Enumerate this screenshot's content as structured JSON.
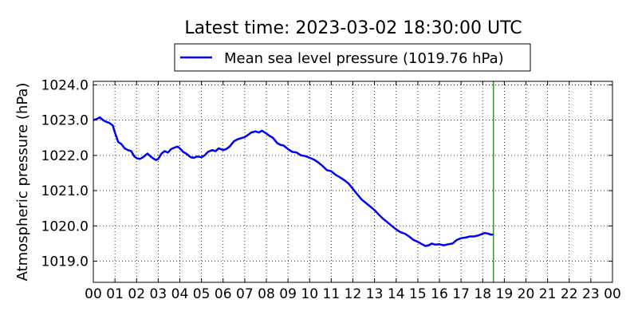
{
  "chart_data": {
    "type": "line",
    "title": "Latest time: 2023-03-02 18:30:00 UTC",
    "xlabel": "",
    "ylabel": "Atmospheric pressure (hPa)",
    "xlim": [
      0,
      24
    ],
    "ylim": [
      1018.4,
      1024.1
    ],
    "x_ticks": [
      "00",
      "01",
      "02",
      "03",
      "04",
      "05",
      "06",
      "07",
      "08",
      "09",
      "10",
      "11",
      "12",
      "13",
      "14",
      "15",
      "16",
      "17",
      "18",
      "19",
      "20",
      "21",
      "22",
      "23",
      "00"
    ],
    "y_ticks": [
      "1019.0",
      "1020.0",
      "1021.0",
      "1022.0",
      "1023.0",
      "1024.0"
    ],
    "grid": true,
    "legend_position": "top-center, above plot",
    "marker_line_x": 18.5,
    "colors": {
      "series": "#0000ff",
      "marker_line": "#008000",
      "grid": "#000000"
    },
    "series": [
      {
        "name": "Mean sea level pressure (1019.76 hPa)",
        "x": [
          0,
          0.15,
          0.3,
          0.45,
          0.6,
          0.75,
          0.9,
          1.0,
          1.15,
          1.3,
          1.45,
          1.6,
          1.75,
          1.9,
          2.0,
          2.15,
          2.3,
          2.5,
          2.65,
          2.8,
          2.9,
          3.0,
          3.15,
          3.3,
          3.45,
          3.6,
          3.75,
          3.9,
          4.0,
          4.15,
          4.3,
          4.5,
          4.65,
          4.8,
          5.0,
          5.15,
          5.3,
          5.5,
          5.65,
          5.8,
          6.0,
          6.15,
          6.3,
          6.5,
          6.65,
          6.8,
          7.0,
          7.15,
          7.3,
          7.5,
          7.65,
          7.8,
          8.0,
          8.15,
          8.3,
          8.5,
          8.65,
          8.8,
          9.0,
          9.2,
          9.4,
          9.6,
          9.8,
          10.0,
          10.2,
          10.4,
          10.6,
          10.8,
          11.0,
          11.2,
          11.4,
          11.6,
          11.8,
          12.0,
          12.2,
          12.4,
          12.6,
          12.8,
          13.0,
          13.2,
          13.4,
          13.6,
          13.8,
          14.0,
          14.2,
          14.4,
          14.6,
          14.8,
          15.0,
          15.2,
          15.35,
          15.5,
          15.65,
          15.8,
          16.0,
          16.2,
          16.4,
          16.6,
          16.8,
          17.0,
          17.2,
          17.4,
          17.6,
          17.8,
          18.0,
          18.1,
          18.25,
          18.4,
          18.5
        ],
        "values": [
          1023.0,
          1023.03,
          1023.08,
          1023.0,
          1022.95,
          1022.92,
          1022.85,
          1022.65,
          1022.38,
          1022.32,
          1022.2,
          1022.15,
          1022.12,
          1021.97,
          1021.92,
          1021.9,
          1021.95,
          1022.05,
          1021.97,
          1021.9,
          1021.87,
          1021.9,
          1022.05,
          1022.12,
          1022.08,
          1022.18,
          1022.22,
          1022.25,
          1022.2,
          1022.1,
          1022.05,
          1021.95,
          1021.93,
          1021.97,
          1021.95,
          1022.0,
          1022.1,
          1022.15,
          1022.12,
          1022.2,
          1022.15,
          1022.18,
          1022.25,
          1022.4,
          1022.45,
          1022.48,
          1022.52,
          1022.58,
          1022.65,
          1022.68,
          1022.65,
          1022.7,
          1022.62,
          1022.55,
          1022.5,
          1022.35,
          1022.3,
          1022.28,
          1022.18,
          1022.1,
          1022.08,
          1022.0,
          1021.98,
          1021.93,
          1021.88,
          1021.8,
          1021.7,
          1021.58,
          1021.55,
          1021.45,
          1021.38,
          1021.3,
          1021.2,
          1021.05,
          1020.9,
          1020.75,
          1020.65,
          1020.55,
          1020.45,
          1020.32,
          1020.2,
          1020.1,
          1020.0,
          1019.9,
          1019.82,
          1019.78,
          1019.7,
          1019.6,
          1019.55,
          1019.48,
          1019.43,
          1019.45,
          1019.5,
          1019.47,
          1019.48,
          1019.45,
          1019.48,
          1019.5,
          1019.6,
          1019.65,
          1019.67,
          1019.7,
          1019.7,
          1019.73,
          1019.78,
          1019.8,
          1019.78,
          1019.75,
          1019.76
        ]
      }
    ]
  }
}
